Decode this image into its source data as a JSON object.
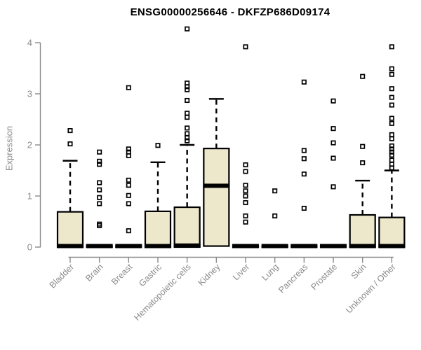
{
  "title": "ENSG00000256646 - DKFZP686D09174",
  "chart_data": {
    "type": "boxplot",
    "title": "ENSG00000256646 - DKFZP686D09174",
    "xlabel": "",
    "ylabel": "Expression",
    "ylim": [
      0,
      4.3
    ],
    "yticks": [
      0,
      1,
      2,
      3,
      4
    ],
    "grid": false,
    "legend": "none",
    "x_label_rotation_deg": 45,
    "categories": [
      "Bladder",
      "Brain",
      "Breast",
      "Gastric",
      "Hematopoietic cells",
      "Kidney",
      "Liver",
      "Lung",
      "Pancreas",
      "Prostate",
      "Skin",
      "Unknown / Other"
    ],
    "series": [
      {
        "name": "Bladder",
        "q1": 0,
        "median": 0.02,
        "q3": 0.69,
        "whisker_low": 0,
        "whisker_high": 1.69,
        "outliers": [
          2.02,
          2.28
        ]
      },
      {
        "name": "Brain",
        "q1": 0,
        "median": 0.02,
        "q3": 0.02,
        "whisker_low": 0,
        "whisker_high": 0.02,
        "outliers": [
          0.42,
          0.45,
          0.85,
          0.97,
          1.12,
          1.26,
          1.62,
          1.68,
          1.86
        ]
      },
      {
        "name": "Breast",
        "q1": 0,
        "median": 0.02,
        "q3": 0.02,
        "whisker_low": 0,
        "whisker_high": 0.02,
        "outliers": [
          0.32,
          0.85,
          1.01,
          1.21,
          1.31,
          1.79,
          1.86,
          1.92,
          3.12
        ]
      },
      {
        "name": "Gastric",
        "q1": 0,
        "median": 0.02,
        "q3": 0.7,
        "whisker_low": 0,
        "whisker_high": 1.66,
        "outliers": [
          1.99
        ]
      },
      {
        "name": "Hematopoietic cells",
        "q1": 0,
        "median": 0.03,
        "q3": 0.78,
        "whisker_low": 0,
        "whisker_high": 2.0,
        "outliers": [
          2.08,
          2.14,
          2.22,
          2.33,
          2.54,
          2.62,
          2.87,
          3.08,
          3.14,
          3.21,
          4.27
        ]
      },
      {
        "name": "Kidney",
        "q1": 0.02,
        "median": 1.2,
        "q3": 1.93,
        "whisker_low": 0.02,
        "whisker_high": 2.9,
        "outliers": []
      },
      {
        "name": "Liver",
        "q1": 0,
        "median": 0.02,
        "q3": 0.02,
        "whisker_low": 0,
        "whisker_high": 0.02,
        "outliers": [
          0.49,
          0.61,
          0.87,
          1.0,
          1.1,
          1.21,
          1.48,
          1.61,
          3.92
        ]
      },
      {
        "name": "Lung",
        "q1": 0,
        "median": 0.02,
        "q3": 0.02,
        "whisker_low": 0,
        "whisker_high": 0.02,
        "outliers": [
          0.61,
          1.1
        ]
      },
      {
        "name": "Pancreas",
        "q1": 0,
        "median": 0.02,
        "q3": 0.02,
        "whisker_low": 0,
        "whisker_high": 0.02,
        "outliers": [
          0.76,
          1.43,
          1.73,
          1.89,
          3.23
        ]
      },
      {
        "name": "Prostate",
        "q1": 0,
        "median": 0.02,
        "q3": 0.02,
        "whisker_low": 0,
        "whisker_high": 0.02,
        "outliers": [
          1.18,
          1.74,
          2.04,
          2.32,
          2.86
        ]
      },
      {
        "name": "Skin",
        "q1": 0,
        "median": 0.02,
        "q3": 0.63,
        "whisker_low": 0,
        "whisker_high": 1.3,
        "outliers": [
          1.65,
          1.97,
          3.34
        ]
      },
      {
        "name": "Unknown / Other",
        "q1": 0,
        "median": 0.02,
        "q3": 0.58,
        "whisker_low": 0,
        "whisker_high": 1.5,
        "outliers": [
          1.55,
          1.62,
          1.7,
          1.8,
          1.86,
          1.92,
          1.98,
          2.12,
          2.2,
          2.42,
          2.52,
          2.78,
          2.93,
          3.1,
          3.38,
          3.49,
          3.92
        ]
      }
    ],
    "colors": {
      "box_fill": "#EDE7CB",
      "box_border": "#000000",
      "median": "#000000",
      "whisker": "#000000",
      "outlier": "#000000",
      "axis": "#8A8A8A",
      "tick_label": "#8A8A8A",
      "title_text": "#000000",
      "background": "#FFFFFF"
    }
  }
}
